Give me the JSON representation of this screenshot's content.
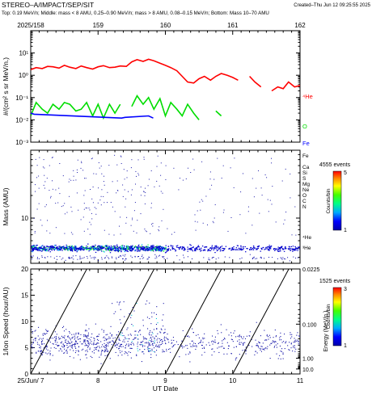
{
  "header": {
    "title": "STEREO–A/IMPACT/SEP/SIT",
    "created": "Created–Thu Jun 12 09:25:55 2025",
    "subtitle": "Top: 0.19 MeV/n; Middle: mass < 8 AMU, 0.25–0.90 MeV/n; mass > 8 AMU, 0.08–0.15 MeV/n; Bottom: Mass 10–70 AMU"
  },
  "colors": {
    "he": "#ff0000",
    "o": "#00dd00",
    "fe": "#0000ff",
    "line": "#000000"
  },
  "chart_data": [
    {
      "type": "line",
      "panel": "top",
      "xlabel": "",
      "ylabel": "#/(cm² s sr MeV/n.)",
      "x_tick_labels": [
        "2025/158",
        "159",
        "160",
        "161",
        "162"
      ],
      "x_ticks": [
        158,
        159,
        160,
        161,
        162
      ],
      "xlim": [
        158,
        162
      ],
      "yscale": "log",
      "ylim": [
        0.001,
        100
      ],
      "y_tick_labels": [
        "10⁻³",
        "10⁻²",
        "10⁻¹",
        "10⁰",
        "10¹"
      ],
      "series": [
        {
          "name": "⁴He",
          "color": "#ff0000",
          "x": [
            158.0,
            158.08,
            158.17,
            158.25,
            158.33,
            158.42,
            158.5,
            158.58,
            158.67,
            158.75,
            158.83,
            158.92,
            159.0,
            159.08,
            159.17,
            159.25,
            159.33,
            159.42,
            159.5,
            159.58,
            159.67,
            159.75,
            159.83,
            159.92,
            160.0,
            160.08,
            160.17,
            160.25,
            160.33,
            160.42,
            160.5,
            160.58,
            160.67,
            160.75,
            160.83,
            160.92,
            161.0,
            161.08,
            161.17,
            161.25,
            161.33,
            161.42,
            161.5,
            161.58,
            161.67,
            161.75,
            161.83,
            161.92,
            162.0
          ],
          "y": [
            1.8,
            2.2,
            2.0,
            2.5,
            2.4,
            2.1,
            2.8,
            2.3,
            2.0,
            2.6,
            2.2,
            1.9,
            2.4,
            2.7,
            2.2,
            2.3,
            2.6,
            2.5,
            4.0,
            5.0,
            4.2,
            5.2,
            4.5,
            3.5,
            2.8,
            2.2,
            1.6,
            0.9,
            0.5,
            0.45,
            0.7,
            0.9,
            0.6,
            0.9,
            1.2,
            1.0,
            0.8,
            0.6,
            null,
            0.9,
            0.5,
            0.3,
            null,
            0.2,
            0.3,
            0.25,
            0.5,
            0.3,
            0.35
          ]
        },
        {
          "name": "O",
          "color": "#00dd00",
          "x": [
            158.0,
            158.08,
            158.17,
            158.25,
            158.33,
            158.42,
            158.5,
            158.58,
            158.67,
            158.75,
            158.83,
            158.92,
            159.0,
            159.08,
            159.17,
            159.25,
            159.33,
            159.42,
            159.5,
            159.58,
            159.67,
            159.75,
            159.83,
            159.92,
            160.0,
            160.08,
            160.17,
            160.25,
            160.33,
            160.42,
            160.5,
            160.58,
            160.67,
            160.75,
            160.83,
            160.92
          ],
          "y": [
            0.015,
            0.06,
            0.03,
            0.02,
            0.05,
            0.03,
            0.06,
            0.05,
            0.025,
            0.03,
            0.06,
            0.015,
            0.05,
            0.012,
            0.05,
            0.02,
            0.05,
            null,
            0.04,
            0.12,
            0.05,
            0.1,
            0.03,
            0.09,
            0.015,
            0.06,
            0.03,
            0.015,
            0.05,
            0.02,
            0.01,
            null,
            null,
            0.025,
            0.015,
            null
          ]
        },
        {
          "name": "Fe",
          "color": "#0000ff",
          "x": [
            158.0,
            158.05,
            159.35,
            159.4,
            159.75,
            159.82
          ],
          "y": [
            0.02,
            0.018,
            0.012,
            0.013,
            0.015,
            0.012
          ]
        }
      ]
    },
    {
      "type": "scatter",
      "panel": "middle",
      "ylabel": "Mass (AMU)",
      "xlim": [
        158,
        162
      ],
      "yscale": "log",
      "ylim": [
        2.5,
        80
      ],
      "y_tick_labels": [
        "10"
      ],
      "element_labels": [
        "Fe",
        "Ca",
        "Si",
        "S",
        "Mg",
        "Ne",
        "O",
        "C",
        "N",
        "⁴He",
        "³He"
      ],
      "colorbar": {
        "title": "4555 events",
        "label": "Counts/bin",
        "min": 1,
        "max": 5,
        "tick_labels": [
          "1",
          "5"
        ]
      },
      "events": 4555
    },
    {
      "type": "scatter",
      "panel": "bottom",
      "xlabel": "UT Date",
      "ylabel": "1/Ion Speed (hour/AU)",
      "x_tick_labels": [
        "25/Jun/ 7",
        "8",
        "9",
        "10",
        "11"
      ],
      "x_ticks": [
        7,
        8,
        9,
        10,
        11
      ],
      "xlim": [
        7,
        11
      ],
      "ylim": [
        0,
        20
      ],
      "y_tick_labels": [
        "0",
        "5",
        "10",
        "15",
        "20"
      ],
      "right_axis": {
        "label": "Energy (MeV/n.)",
        "tick_labels": [
          "0.0225",
          "0.100",
          "1.00",
          "10.0"
        ],
        "tick_values": [
          0.0225,
          0.1,
          1.0,
          10.0
        ]
      },
      "colorbar": {
        "title": "1525 events",
        "label": "Counts/bin",
        "min": 1,
        "max": 3,
        "tick_labels": [
          "1",
          "3"
        ]
      },
      "events": 1525,
      "dispersion_line_starts": [
        7,
        8,
        9,
        10
      ]
    }
  ]
}
